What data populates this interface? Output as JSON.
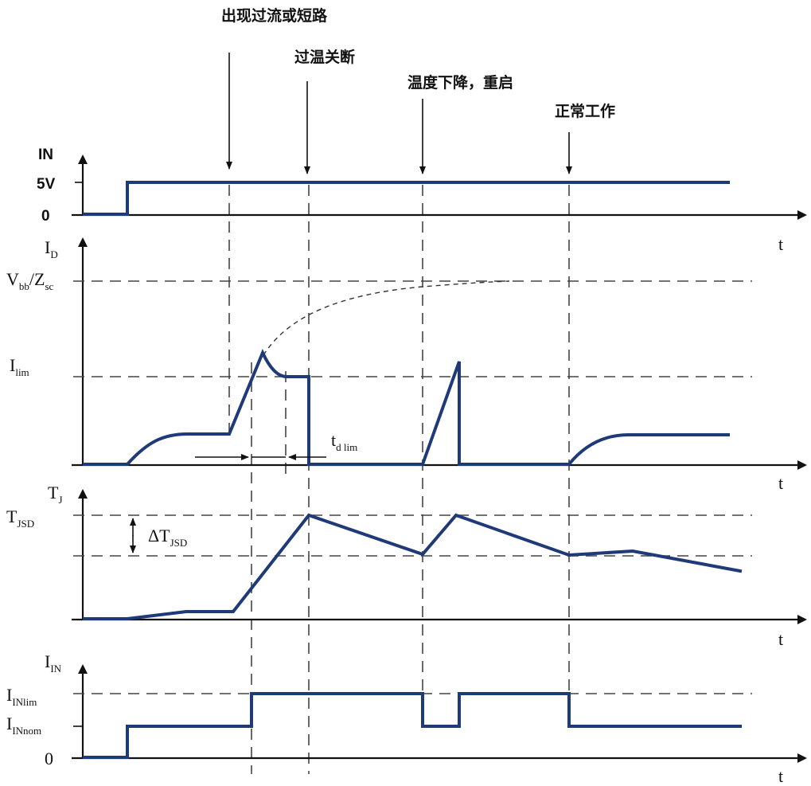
{
  "events": {
    "overcurrent": "出现过流或短路",
    "thermal_shutdown": "过温关断",
    "cool_restart": "温度下降，重启",
    "normal": "正常工作"
  },
  "panel_in": {
    "axis": "IN",
    "level_high": "5V",
    "level_zero": "0",
    "t": "t"
  },
  "panel_id": {
    "axis_main": "I",
    "axis_sub": "D",
    "vbb_main": "V",
    "vbb_sub": "bb",
    "slash_z": "/Z",
    "zsc_sub": "sc",
    "ilim_main": "I",
    "ilim_sub": "lim",
    "tdlim_main": "t",
    "tdlim_sub": "d lim",
    "t": "t"
  },
  "panel_tj": {
    "axis_main": "T",
    "axis_sub": "J",
    "tjsd_main": "T",
    "tjsd_sub": "JSD",
    "dt_main": "ΔT",
    "dt_sub": "JSD",
    "t": "t"
  },
  "panel_iin": {
    "axis_main": "I",
    "axis_sub": "IN",
    "lim_main": "I",
    "lim_sub": "INlim",
    "nom_main": "I",
    "nom_sub": "INnom",
    "zero": "0",
    "t": "t"
  }
}
